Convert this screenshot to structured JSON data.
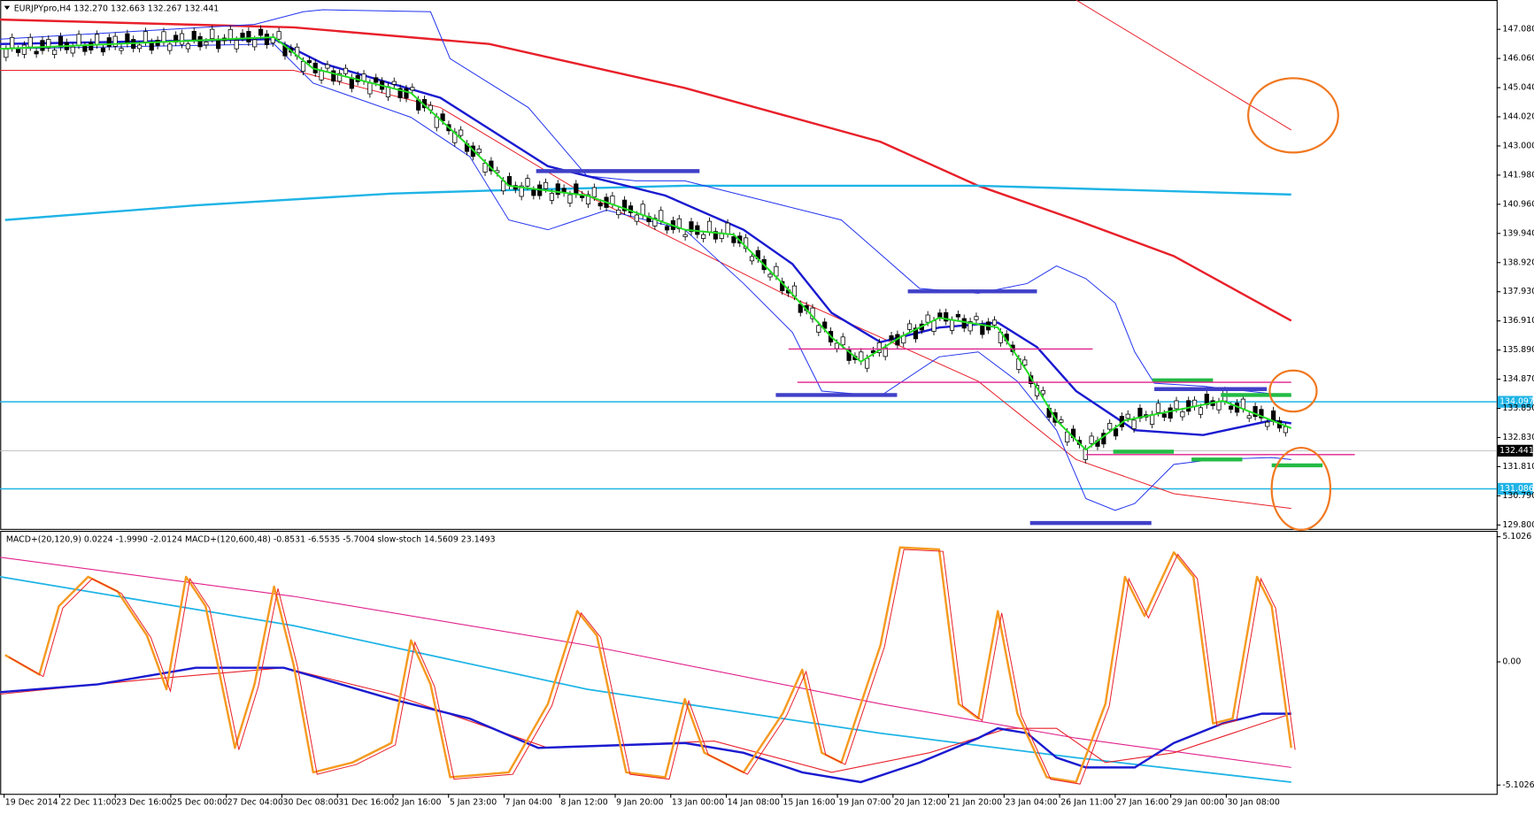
{
  "header": {
    "title": "EURJPYpro,H4  132.270 132.663 132.267 132.441"
  },
  "price_axis": {
    "ticks": [
      "147.080",
      "146.060",
      "145.040",
      "144.020",
      "143.000",
      "141.980",
      "140.960",
      "139.940",
      "138.920",
      "137.930",
      "136.910",
      "135.890",
      "134.870",
      "133.850",
      "132.830",
      "131.810",
      "130.790",
      "129.800"
    ]
  },
  "price_markers": {
    "upper_line": "134.097",
    "current_price": "132.441",
    "lower_line": "131.086"
  },
  "indicator_panel": {
    "title": "MACD+(20,120,9) 0.0224 -1.9990 -2.0124  MACD+(120,600,48) -0.8531 -6.5535 -5.7004  slow-stoch 14.5609 23.1493",
    "ticks": [
      "5.1026",
      "0.00",
      "-5.1026"
    ]
  },
  "time_axis": {
    "labels": [
      "19 Dec 2014",
      "22 Dec 11:00",
      "23 Dec 16:00",
      "25 Dec 00:00",
      "27 Dec 04:00",
      "30 Dec 08:00",
      "31 Dec 16:00",
      "2 Jan 16:00",
      "5 Jan 23:00",
      "7 Jan 04:00",
      "8 Jan 12:00",
      "9 Jan 20:00",
      "13 Jan 00:00",
      "14 Jan 08:00",
      "15 Jan 16:00",
      "19 Jan 07:00",
      "20 Jan 12:00",
      "21 Jan 20:00",
      "23 Jan 04:00",
      "26 Jan 11:00",
      "27 Jan 16:00",
      "29 Jan 00:00",
      "30 Jan 08:00"
    ]
  }
}
